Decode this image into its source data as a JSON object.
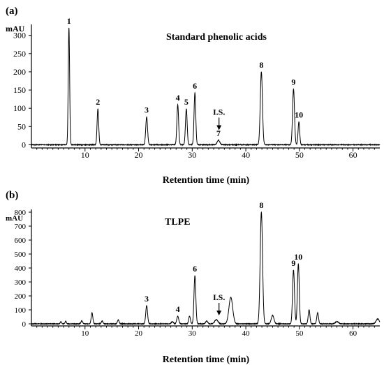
{
  "figure": {
    "panels": [
      "(a)",
      "(b)"
    ]
  },
  "chart_data": [
    {
      "type": "line",
      "panel_label": "(a)",
      "title": "Standard phenolic acids",
      "xlabel": "Retention time (min)",
      "ylabel": "mAU",
      "xlim": [
        0,
        65
      ],
      "ylim": [
        -5,
        330
      ],
      "x_ticks": [
        10,
        20,
        30,
        40,
        50,
        60
      ],
      "y_ticks": [
        0,
        50,
        100,
        150,
        200,
        250,
        300
      ],
      "grid": false,
      "baseline": 0,
      "peaks": [
        {
          "label": "1",
          "x": 7.0,
          "height": 320,
          "width": 0.13
        },
        {
          "label": "2",
          "x": 12.4,
          "height": 98,
          "width": 0.15
        },
        {
          "label": "3",
          "x": 21.5,
          "height": 76,
          "width": 0.17
        },
        {
          "label": "4",
          "x": 27.3,
          "height": 110,
          "width": 0.16
        },
        {
          "label": "5",
          "x": 28.9,
          "height": 98,
          "width": 0.16
        },
        {
          "label": "6",
          "x": 30.5,
          "height": 142,
          "width": 0.16
        },
        {
          "label": "7",
          "x": 34.9,
          "height": 12,
          "width": 0.25
        },
        {
          "label": "8",
          "x": 42.9,
          "height": 200,
          "width": 0.2
        },
        {
          "label": "9",
          "x": 48.9,
          "height": 153,
          "width": 0.18
        },
        {
          "label": "10",
          "x": 49.9,
          "height": 63,
          "width": 0.15
        }
      ],
      "annotations": [
        {
          "text": "I.S.",
          "x": 35.0,
          "arrow": true
        }
      ]
    },
    {
      "type": "line",
      "panel_label": "(b)",
      "title": "TLPE",
      "xlabel": "Retention time (min)",
      "ylabel": "mAU",
      "xlim": [
        0,
        65
      ],
      "ylim": [
        -5,
        820
      ],
      "x_ticks": [
        10,
        20,
        30,
        40,
        50,
        60
      ],
      "y_ticks": [
        0,
        100,
        200,
        300,
        400,
        500,
        600,
        700,
        800
      ],
      "grid": false,
      "baseline": 0,
      "peaks": [
        {
          "label": "3",
          "x": 21.5,
          "height": 130,
          "width": 0.17
        },
        {
          "label": "4",
          "x": 27.3,
          "height": 55,
          "width": 0.18
        },
        {
          "label": "6",
          "x": 30.5,
          "height": 345,
          "width": 0.17
        },
        {
          "label": "8",
          "x": 42.9,
          "height": 800,
          "width": 0.22
        },
        {
          "label": "9",
          "x": 48.9,
          "height": 385,
          "width": 0.18
        },
        {
          "label": "10",
          "x": 49.8,
          "height": 430,
          "width": 0.17
        }
      ],
      "other_peaks": [
        {
          "x": 5.5,
          "height": 15,
          "width": 0.12
        },
        {
          "x": 6.4,
          "height": 20,
          "width": 0.12
        },
        {
          "x": 9.4,
          "height": 22,
          "width": 0.15
        },
        {
          "x": 11.3,
          "height": 80,
          "width": 0.15
        },
        {
          "x": 13.2,
          "height": 20,
          "width": 0.15
        },
        {
          "x": 16.2,
          "height": 28,
          "width": 0.15
        },
        {
          "x": 26.3,
          "height": 15,
          "width": 0.2
        },
        {
          "x": 29.5,
          "height": 55,
          "width": 0.16
        },
        {
          "x": 32.7,
          "height": 20,
          "width": 0.2
        },
        {
          "x": 34.5,
          "height": 30,
          "width": 0.3
        },
        {
          "x": 37.2,
          "height": 190,
          "width": 0.35
        },
        {
          "x": 45.0,
          "height": 60,
          "width": 0.25
        },
        {
          "x": 51.8,
          "height": 100,
          "width": 0.16
        },
        {
          "x": 53.4,
          "height": 80,
          "width": 0.16
        },
        {
          "x": 57.0,
          "height": 15,
          "width": 0.3
        },
        {
          "x": 64.6,
          "height": 35,
          "width": 0.3
        }
      ],
      "annotations": [
        {
          "text": "I.S.",
          "x": 35.0,
          "arrow": true
        }
      ]
    }
  ]
}
